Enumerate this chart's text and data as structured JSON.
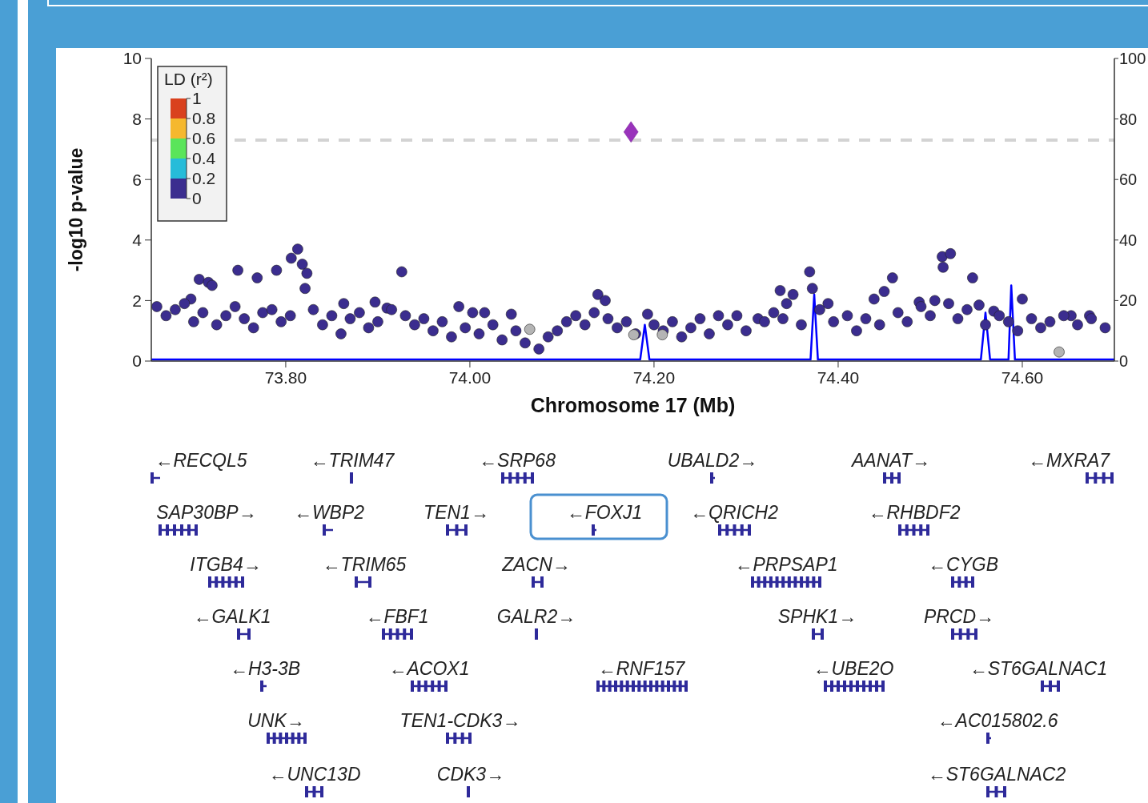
{
  "chart_data": {
    "type": "scatter",
    "xlabel": "Chromosome 17 (Mb)",
    "ylabel": "-log10 p-value",
    "clabel": "LD (r²)",
    "xlim": [
      73.654,
      74.7
    ],
    "xticks": [
      {
        "value": 73.8,
        "label": "73.80"
      },
      {
        "value": 74.0,
        "label": "74.00"
      },
      {
        "value": 74.2,
        "label": "74.20"
      },
      {
        "value": 74.4,
        "label": "74.40"
      },
      {
        "value": 74.6,
        "label": "74.60"
      }
    ],
    "ylim": [
      0,
      10
    ],
    "yticks": [
      0,
      2,
      4,
      6,
      8,
      10
    ],
    "y2lim": [
      0,
      100
    ],
    "y2ticks": [
      0,
      20,
      40,
      60,
      80,
      100
    ],
    "grid": false,
    "ref_lines": [
      {
        "axis": "y",
        "value": 7.3,
        "color": "#d3d3d3",
        "line_style": "dashed"
      }
    ],
    "series": [
      {
        "type": "line",
        "axis": "y2",
        "color": "#0000ff",
        "line_style": "solid",
        "x": [
          73.654,
          74.185,
          74.19,
          74.195,
          74.37,
          74.374,
          74.378,
          74.555,
          74.56,
          74.565,
          74.585,
          74.588,
          74.592,
          74.7
        ],
        "values": [
          0.5,
          0.5,
          12,
          0.5,
          0.5,
          22,
          0.5,
          0.5,
          16,
          0.5,
          0.5,
          25,
          0.5,
          0.5
        ]
      },
      {
        "marker": "circle",
        "x": [
          73.706,
          73.716,
          73.72,
          73.748,
          73.769,
          73.79,
          73.806,
          73.813,
          73.818,
          73.823,
          73.821,
          73.926,
          74.139,
          74.147,
          73.863,
          73.897,
          73.988,
          74.003,
          74.016,
          74.045,
          73.91,
          73.697,
          74.369,
          74.372,
          74.337,
          74.351,
          74.344,
          74.389,
          74.459,
          74.45,
          74.439,
          74.513,
          74.522,
          74.514,
          74.546,
          74.553,
          74.569,
          74.6,
          74.653,
          74.673,
          74.193,
          74.27,
          74.313,
          74.488,
          74.505,
          73.66,
          73.67,
          73.68,
          73.69,
          73.7,
          73.71,
          73.725,
          73.735,
          73.745,
          73.755,
          73.765,
          73.775,
          73.785,
          73.795,
          73.805,
          73.83,
          73.84,
          73.85,
          73.86,
          73.87,
          73.88,
          73.89,
          73.9,
          73.915,
          73.93,
          73.94,
          73.95,
          73.96,
          73.97,
          73.98,
          73.995,
          74.01,
          74.025,
          74.035,
          74.05,
          74.06,
          74.075,
          74.085,
          74.095,
          74.105,
          74.115,
          74.125,
          74.135,
          74.15,
          74.16,
          74.17,
          74.18,
          74.2,
          74.21,
          74.22,
          74.23,
          74.24,
          74.25,
          74.26,
          74.28,
          74.29,
          74.3,
          74.32,
          74.33,
          74.34,
          74.36,
          74.38,
          74.395,
          74.41,
          74.42,
          74.43,
          74.445,
          74.465,
          74.475,
          74.49,
          74.5,
          74.52,
          74.53,
          74.54,
          74.56,
          74.575,
          74.585,
          74.595,
          74.61,
          74.62,
          74.63,
          74.645,
          74.66,
          74.675,
          74.69
        ],
        "values": [
          2.7,
          2.6,
          2.5,
          3.0,
          2.75,
          3.0,
          3.4,
          3.7,
          3.2,
          2.9,
          2.4,
          2.95,
          2.2,
          2.0,
          1.9,
          1.95,
          1.8,
          1.6,
          1.6,
          1.55,
          1.75,
          2.05,
          2.95,
          2.4,
          2.33,
          2.2,
          1.9,
          1.9,
          2.75,
          2.3,
          2.05,
          3.45,
          3.55,
          3.1,
          2.75,
          1.85,
          1.65,
          2.05,
          1.5,
          1.5,
          1.55,
          1.5,
          1.4,
          1.95,
          2.0,
          1.8,
          1.5,
          1.7,
          1.9,
          1.3,
          1.6,
          1.2,
          1.5,
          1.8,
          1.4,
          1.1,
          1.6,
          1.7,
          1.3,
          1.5,
          1.7,
          1.2,
          1.5,
          0.9,
          1.4,
          1.6,
          1.1,
          1.3,
          1.7,
          1.5,
          1.2,
          1.4,
          1.0,
          1.3,
          0.8,
          1.1,
          0.9,
          1.2,
          0.7,
          1.0,
          0.6,
          0.4,
          0.8,
          1.0,
          1.3,
          1.5,
          1.2,
          1.6,
          1.4,
          1.1,
          1.3,
          0.9,
          1.2,
          1.0,
          1.3,
          0.8,
          1.1,
          1.4,
          0.9,
          1.2,
          1.5,
          1.0,
          1.3,
          1.6,
          1.4,
          1.2,
          1.7,
          1.3,
          1.5,
          1.0,
          1.4,
          1.2,
          1.6,
          1.3,
          1.8,
          1.5,
          1.9,
          1.4,
          1.7,
          1.2,
          1.5,
          1.3,
          1.0,
          1.4,
          1.1,
          1.3,
          1.5,
          1.2,
          1.4,
          1.1
        ],
        "color": "#3b2d8f"
      },
      {
        "marker": "circle",
        "color": "#b4b4b4",
        "x": [
          74.065,
          74.178,
          74.209,
          74.64
        ],
        "values": [
          1.05,
          0.87,
          0.87,
          0.3
        ]
      },
      {
        "marker": "diamond",
        "color": "#9933bb",
        "x": [
          74.175
        ],
        "values": [
          7.57
        ]
      }
    ],
    "annotations": [
      "←RECQL5",
      "←TRIM47",
      "←SRP68",
      "UBALD2→",
      "AANAT→",
      "←MXRA7",
      "SAP30BP→",
      "←WBP2",
      "TEN1→",
      "←FOXJ1",
      "←QRICH2",
      "←RHBDF2",
      "ITGB4→",
      "←TRIM65",
      "ZACN→",
      "←PRPSAP1",
      "←CYGB",
      "←GALK1",
      "←FBF1",
      "GALR2→",
      "SPHK1→",
      "PRCD→",
      "←H3-3B",
      "←ACOX1",
      "←RNF157",
      "←UBE2O",
      "←ST6GALNAC1",
      "UNK→",
      "TEN1-CDK3→",
      "←AC015802.6",
      "←UNC13D",
      "CDK3→",
      "←ST6GALNAC2",
      "1",
      "0.8",
      "0.6",
      "0.4",
      "0.2",
      "0"
    ]
  }
}
